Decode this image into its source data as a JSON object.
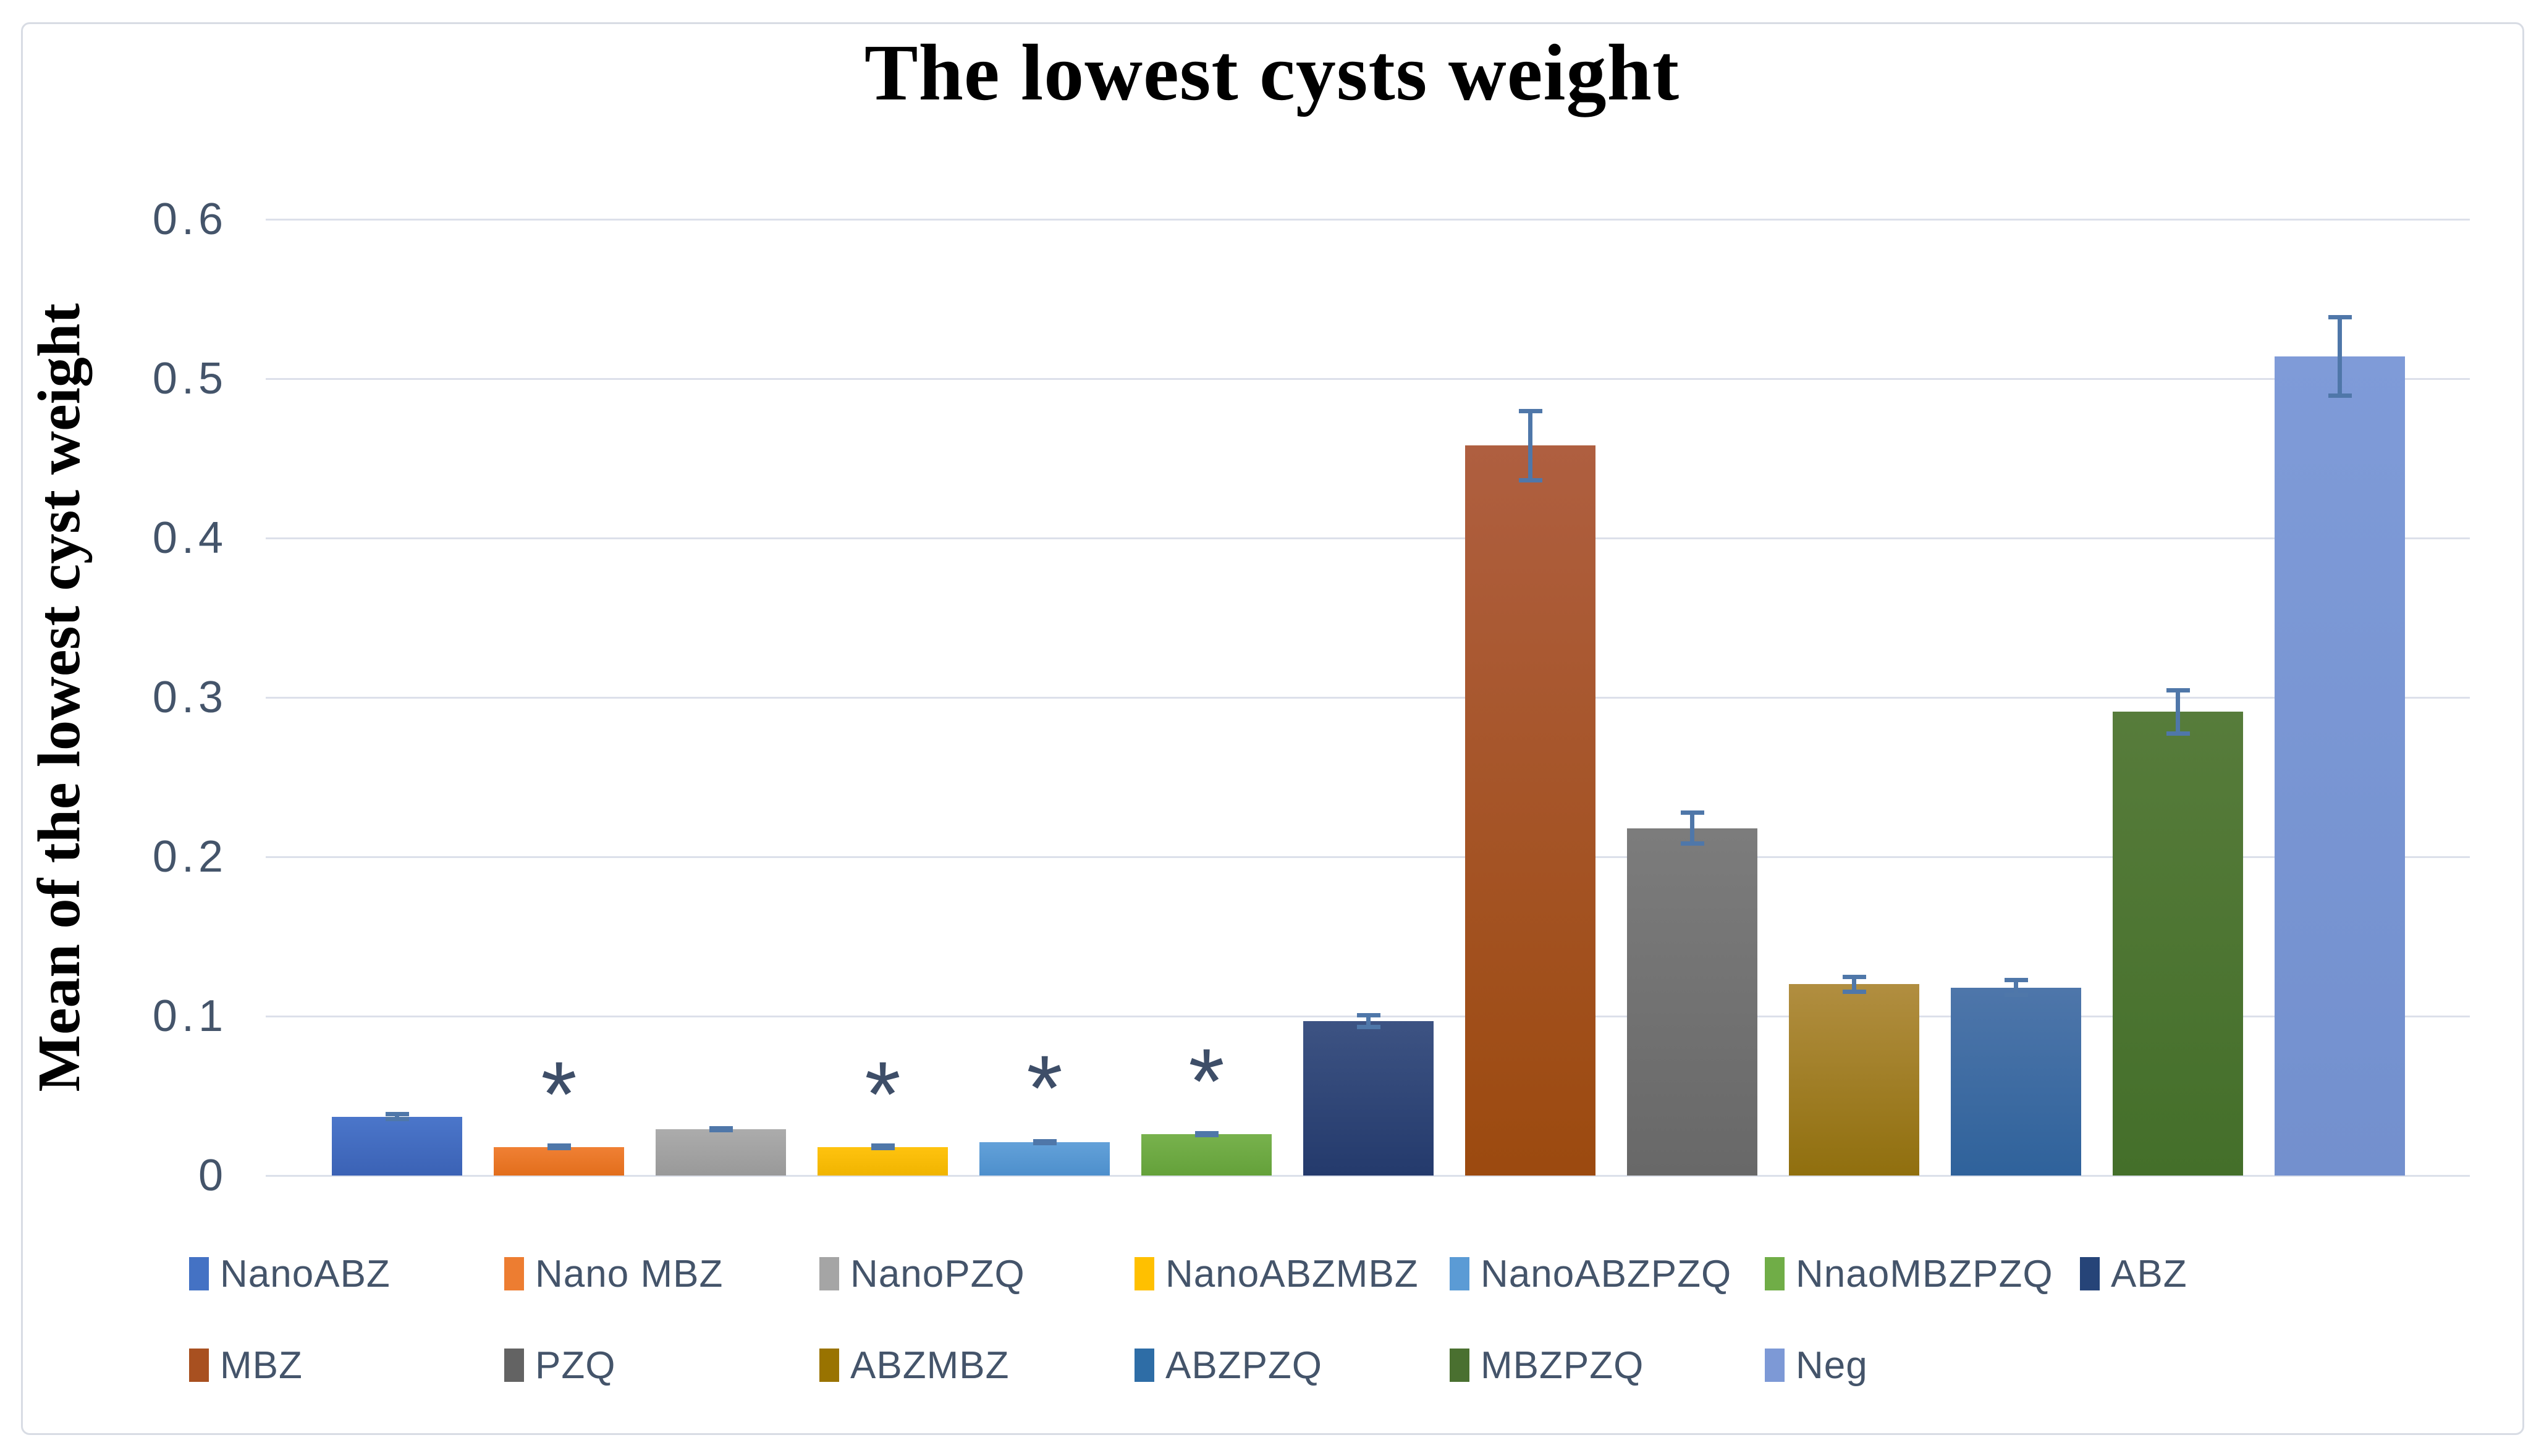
{
  "chart_data": {
    "type": "bar",
    "title": "The lowest cysts weight",
    "ylabel": "Mean of the lowest cyst weight",
    "ylim": [
      0,
      0.6
    ],
    "grid": true,
    "legend_position": "bottom",
    "legend_rows": [
      7,
      6
    ],
    "significance_marker": "*",
    "yticks": [
      {
        "v": 0,
        "label": "0"
      },
      {
        "v": 0.1,
        "label": "0.1"
      },
      {
        "v": 0.2,
        "label": "0.2"
      },
      {
        "v": 0.3,
        "label": "0.3"
      },
      {
        "v": 0.4,
        "label": "0.4"
      },
      {
        "v": 0.5,
        "label": "0.5"
      },
      {
        "v": 0.6,
        "label": "0.6"
      }
    ],
    "series": [
      {
        "name": "NanoABZ",
        "value": 0.037,
        "error": 0.003,
        "significant": false,
        "marker_y": null,
        "color_top": "#4B76CA",
        "color_bottom": "#3B62B5",
        "legend_color": "#4472C4"
      },
      {
        "name": "Nano MBZ",
        "value": 0.018,
        "error": 0.002,
        "significant": true,
        "marker_y": 0.055,
        "color_top": "#F08034",
        "color_bottom": "#E26E1C",
        "legend_color": "#ED7D31"
      },
      {
        "name": "NanoPZQ",
        "value": 0.029,
        "error": 0.002,
        "significant": false,
        "marker_y": null,
        "color_top": "#ACACAC",
        "color_bottom": "#999999",
        "legend_color": "#A5A5A5"
      },
      {
        "name": "NanoABZMBZ",
        "value": 0.018,
        "error": 0.002,
        "significant": true,
        "marker_y": 0.055,
        "color_top": "#FFC30F",
        "color_bottom": "#F0B400",
        "legend_color": "#FFC000"
      },
      {
        "name": "NanoABZPZQ",
        "value": 0.021,
        "error": 0.002,
        "significant": true,
        "marker_y": 0.059,
        "color_top": "#63A1D9",
        "color_bottom": "#4D8FCC",
        "legend_color": "#5B9BD5"
      },
      {
        "name": "NnaoMBZPZQ",
        "value": 0.026,
        "error": 0.002,
        "significant": true,
        "marker_y": 0.063,
        "color_top": "#78B24D",
        "color_bottom": "#64A13A",
        "legend_color": "#70AD47"
      },
      {
        "name": "ABZ",
        "value": 0.097,
        "error": 0.005,
        "significant": false,
        "marker_y": null,
        "color_top": "#3D5383",
        "color_bottom": "#243A6C",
        "legend_color": "#264478"
      },
      {
        "name": "MBZ",
        "value": 0.458,
        "error": 0.023,
        "significant": false,
        "marker_y": null,
        "color_top": "#AF5F40",
        "color_bottom": "#9C4A0F",
        "legend_color": "#A85020"
      },
      {
        "name": "PZQ",
        "value": 0.218,
        "error": 0.011,
        "significant": false,
        "marker_y": null,
        "color_top": "#7C7C7C",
        "color_bottom": "#686868",
        "legend_color": "#636363"
      },
      {
        "name": "ABZMBZ",
        "value": 0.12,
        "error": 0.006,
        "significant": false,
        "marker_y": null,
        "color_top": "#B18E40",
        "color_bottom": "#906F0E",
        "legend_color": "#997300"
      },
      {
        "name": "ABZPZQ",
        "value": 0.118,
        "error": 0.006,
        "significant": false,
        "marker_y": null,
        "color_top": "#4E76AA",
        "color_bottom": "#2F629B",
        "legend_color": "#2E6DA6"
      },
      {
        "name": "MBZPZQ",
        "value": 0.291,
        "error": 0.015,
        "significant": false,
        "marker_y": null,
        "color_top": "#577C3B",
        "color_bottom": "#446F2A",
        "legend_color": "#4A7030"
      },
      {
        "name": "Neg",
        "value": 0.514,
        "error": 0.026,
        "significant": false,
        "marker_y": null,
        "color_top": "#7F9BD8",
        "color_bottom": "#7390CE",
        "legend_color": "#7D99D6"
      }
    ],
    "colors": {
      "axis_text": "#44546A",
      "legend_text": "#44546A",
      "gridline": "#DCE0EA",
      "error_bar": "#4F77A9",
      "marker": "#3E4E68",
      "title_text": "#000000",
      "chart_border": "#D8DCE4",
      "background": "#FFFFFF"
    }
  }
}
